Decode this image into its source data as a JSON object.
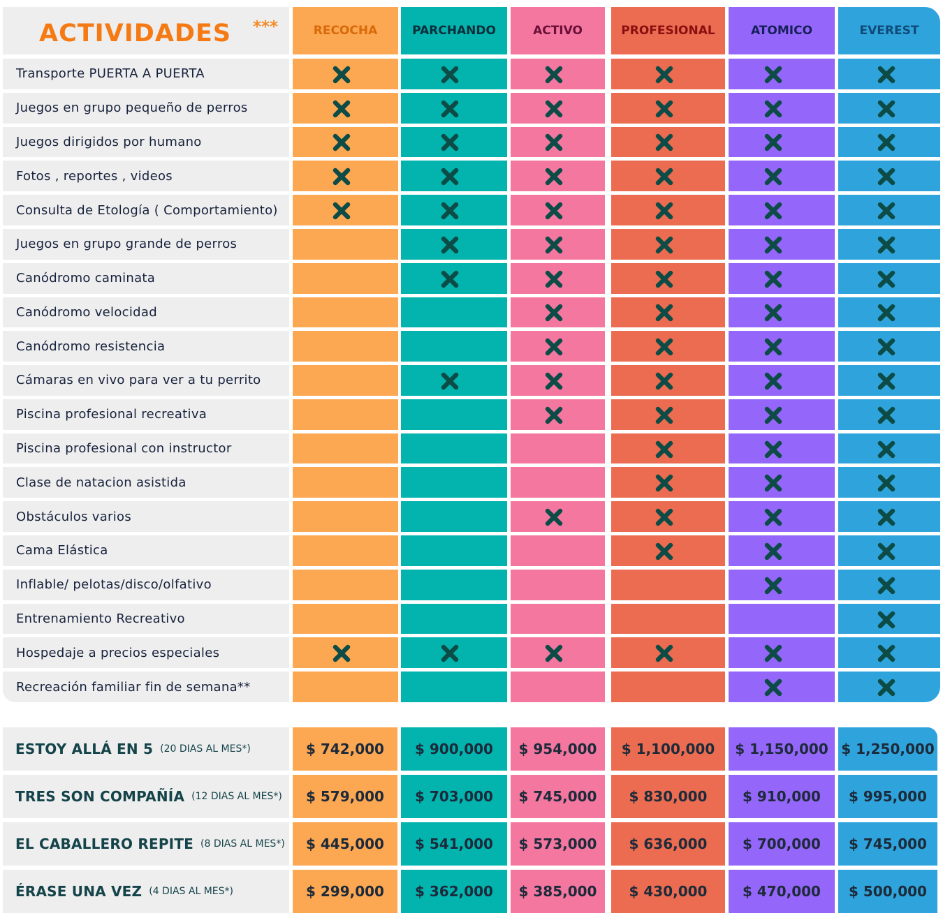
{
  "header": {
    "title": "ACTIVIDADES",
    "marker": "***"
  },
  "colors": {
    "RECOCHA": "#fca752",
    "PARCHANDO": "#02b3ae",
    "ACTIVO": "#f477a0",
    "PROFESIONAL": "#eb6c50",
    "ATOMICO": "#9466f9",
    "EVEREST": "#2fa4dc",
    "check": "#0d4c46"
  },
  "plans": [
    {
      "name": "RECOCHA",
      "text_color": "#d96a0a"
    },
    {
      "name": "PARCHANDO",
      "text_color": "#0b2f3a"
    },
    {
      "name": "ACTIVO",
      "text_color": "#6a1036"
    },
    {
      "name": "PROFESIONAL",
      "text_color": "#8a0f10"
    },
    {
      "name": "ATOMICO",
      "text_color": "#16205a"
    },
    {
      "name": "EVEREST",
      "text_color": "#0f4a78"
    }
  ],
  "activities": [
    {
      "label": "Transporte PUERTA A PUERTA",
      "included": [
        true,
        true,
        true,
        true,
        true,
        true
      ]
    },
    {
      "label": "Juegos en grupo pequeño de perros",
      "included": [
        true,
        true,
        true,
        true,
        true,
        true
      ]
    },
    {
      "label": "Juegos dirigidos por humano",
      "included": [
        true,
        true,
        true,
        true,
        true,
        true
      ]
    },
    {
      "label": "Fotos , reportes , videos",
      "included": [
        true,
        true,
        true,
        true,
        true,
        true
      ]
    },
    {
      "label": "Consulta de Etología ( Comportamiento)",
      "included": [
        true,
        true,
        true,
        true,
        true,
        true
      ]
    },
    {
      "label": "Juegos en grupo grande de perros",
      "included": [
        false,
        true,
        true,
        true,
        true,
        true
      ]
    },
    {
      "label": "Canódromo caminata",
      "included": [
        false,
        true,
        true,
        true,
        true,
        true
      ]
    },
    {
      "label": "Canódromo velocidad",
      "included": [
        false,
        false,
        true,
        true,
        true,
        true
      ]
    },
    {
      "label": "Canódromo resistencia",
      "included": [
        false,
        false,
        true,
        true,
        true,
        true
      ]
    },
    {
      "label": "Cámaras en vivo para ver a tu perrito",
      "included": [
        false,
        true,
        true,
        true,
        true,
        true
      ]
    },
    {
      "label": "Piscina profesional recreativa",
      "included": [
        false,
        false,
        true,
        true,
        true,
        true
      ]
    },
    {
      "label": "Piscina profesional con instructor",
      "included": [
        false,
        false,
        false,
        true,
        true,
        true
      ]
    },
    {
      "label": "Clase de natacion asistida",
      "included": [
        false,
        false,
        false,
        true,
        true,
        true
      ]
    },
    {
      "label": "Obstáculos varios",
      "included": [
        false,
        false,
        true,
        true,
        true,
        true
      ]
    },
    {
      "label": "Cama Elástica",
      "included": [
        false,
        false,
        false,
        true,
        true,
        true
      ]
    },
    {
      "label": "Inflable/ pelotas/disco/olfativo",
      "included": [
        false,
        false,
        false,
        false,
        true,
        true
      ]
    },
    {
      "label": "Entrenamiento Recreativo",
      "included": [
        false,
        false,
        false,
        false,
        false,
        true
      ]
    },
    {
      "label": "Hospedaje a precios especiales",
      "included": [
        true,
        true,
        true,
        true,
        true,
        true
      ]
    },
    {
      "label": "Recreación familiar fin de semana**",
      "included": [
        false,
        false,
        false,
        false,
        true,
        true
      ]
    }
  ],
  "packages": [
    {
      "name": "ESTOY ALLÁ EN 5",
      "days": "(20 DIAS AL MES*)",
      "prices": [
        "$ 742,000",
        "$ 900,000",
        "$ 954,000",
        "$ 1,100,000",
        "$ 1,150,000",
        "$ 1,250,000"
      ]
    },
    {
      "name": "TRES SON COMPAÑÍA",
      "days": "(12 DIAS AL MES*)",
      "prices": [
        "$ 579,000",
        "$ 703,000",
        "$ 745,000",
        "$ 830,000",
        "$ 910,000",
        "$ 995,000"
      ]
    },
    {
      "name": "EL CABALLERO REPITE",
      "days": "(8 DIAS AL MES*)",
      "prices": [
        "$ 445,000",
        "$ 541,000",
        "$ 573,000",
        "$ 636,000",
        "$ 700,000",
        "$ 745,000"
      ]
    },
    {
      "name": "ÉRASE UNA VEZ",
      "days": "(4 DIAS AL MES*)",
      "prices": [
        "$ 299,000",
        "$ 362,000",
        "$ 385,000",
        "$ 430,000",
        "$ 470,000",
        "$ 500,000"
      ]
    }
  ]
}
